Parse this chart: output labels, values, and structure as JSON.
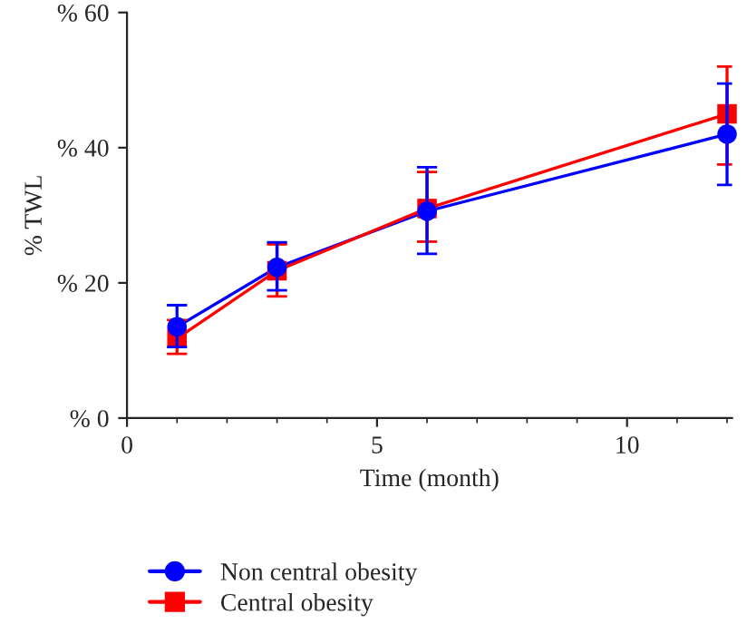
{
  "chart_data": {
    "type": "line",
    "xlabel": "Time (month)",
    "ylabel": "% TWL",
    "x": [
      1,
      3,
      6,
      12
    ],
    "series": [
      {
        "name": "Non central obesity",
        "color": "#0000ff",
        "marker": "circle",
        "values": [
          13.5,
          22.3,
          30.6,
          42
        ],
        "errors": [
          [
            10.5,
            16.7
          ],
          [
            18.9,
            26.0
          ],
          [
            24.3,
            37.1
          ],
          [
            34.5,
            49.5
          ]
        ]
      },
      {
        "name": "Central obesity",
        "color": "#ff0000",
        "marker": "square",
        "values": [
          11.8,
          21.8,
          31.0,
          45
        ],
        "errors": [
          [
            9.5,
            14.5
          ],
          [
            18.0,
            25.7
          ],
          [
            26.1,
            36.4
          ],
          [
            37.5,
            52
          ]
        ]
      }
    ],
    "xlim": [
      0,
      12.1
    ],
    "xticks": [
      0,
      5,
      10
    ],
    "ylim": [
      0,
      60
    ],
    "yticks": [
      {
        "value": 0,
        "label": "% 0"
      },
      {
        "value": 20,
        "label": "% 20"
      },
      {
        "value": 40,
        "label": "% 40"
      },
      {
        "value": 60,
        "label": "% 60"
      }
    ],
    "grid": false,
    "legend": "bottom",
    "line_style": "solid"
  }
}
